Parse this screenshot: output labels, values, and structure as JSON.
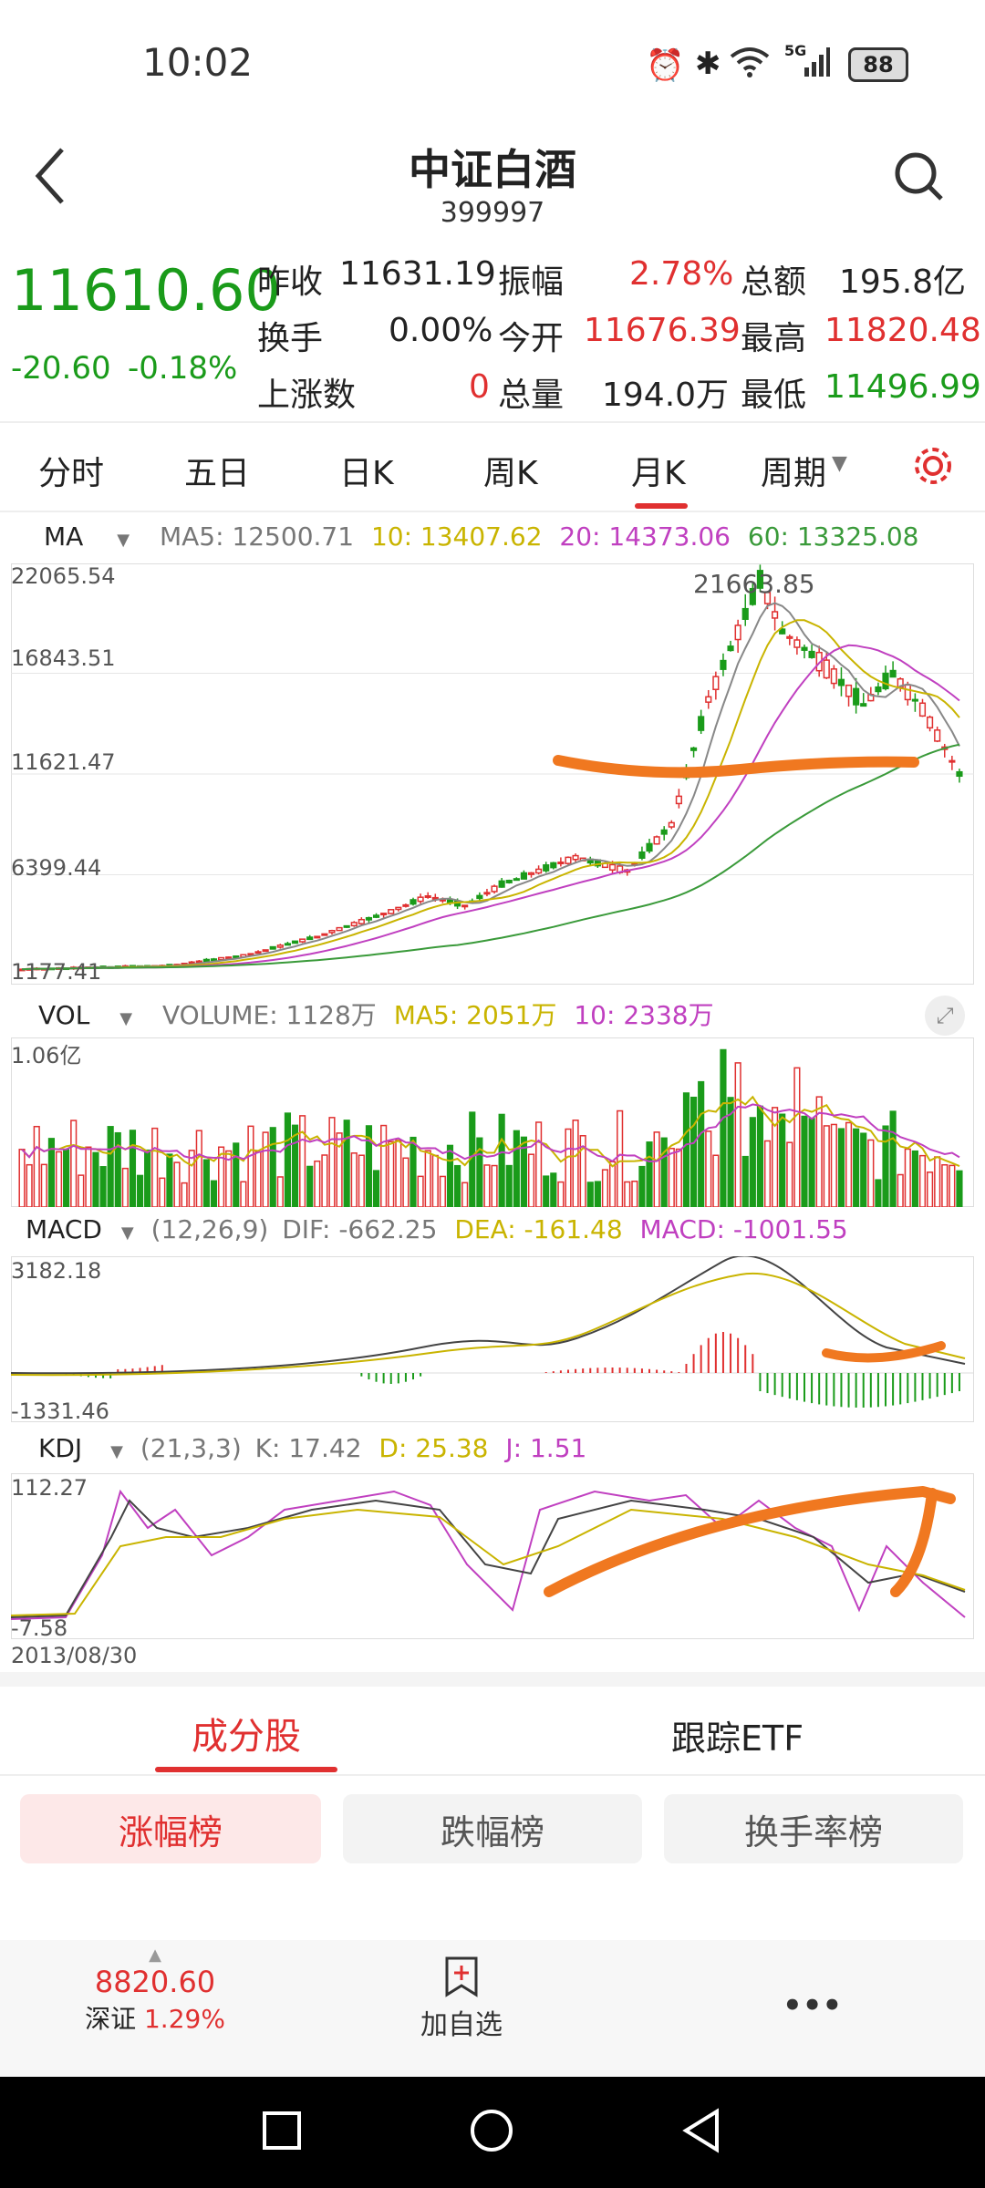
{
  "status_bar": {
    "time": "10:02",
    "battery": "88",
    "network": "5G"
  },
  "header": {
    "title": "中证白酒",
    "code": "399997"
  },
  "quote": {
    "price": "11610.60",
    "change": "-20.60",
    "change_pct": "-0.18%",
    "rows": [
      [
        {
          "label": "昨收",
          "value": "11631.19"
        },
        {
          "label": "振幅",
          "value": "2.78%"
        },
        {
          "label": "总额",
          "value": "195.8亿"
        }
      ],
      [
        {
          "label": "换手",
          "value": "0.00%"
        },
        {
          "label": "今开",
          "value": "11676.39"
        },
        {
          "label": "最高",
          "value": "11820.48"
        }
      ],
      [
        {
          "label": "上涨数",
          "value": "0"
        },
        {
          "label": "总量",
          "value": "194.0万"
        },
        {
          "label": "最低",
          "value": "11496.99"
        }
      ]
    ]
  },
  "period_tabs": [
    "分时",
    "五日",
    "日K",
    "周K",
    "月K",
    "周期"
  ],
  "active_tab": "月K",
  "ma_legend": {
    "name": "MA",
    "ma5": "MA5: 12500.71",
    "ma10": "10: 13407.62",
    "ma20": "20: 14373.06",
    "ma60": "60: 13325.08"
  },
  "price_axis": [
    "22065.54",
    "16843.51",
    "11621.47",
    "6399.44",
    "1177.41"
  ],
  "peak_label": "21663.85",
  "vol_legend": {
    "name": "VOL",
    "volume": "VOLUME: 1128万",
    "ma5": "MA5: 2051万",
    "ma10": "10: 2338万"
  },
  "vol_axis": [
    "1.06亿"
  ],
  "macd_legend": {
    "name": "MACD",
    "params": "(12,26,9)",
    "dif": "DIF: -662.25",
    "dea": "DEA: -161.48",
    "macd": "MACD: -1001.55"
  },
  "macd_axis": [
    "3182.18",
    "-1331.46"
  ],
  "kdj_legend": {
    "name": "KDJ",
    "params": "(21,3,3)",
    "k": "K: 17.42",
    "d": "D: 25.38",
    "j": "J: 1.51"
  },
  "kdj_axis": [
    "112.27",
    "-7.58"
  ],
  "start_date": "2013/08/30",
  "bottom_tabs": [
    "成分股",
    "跟踪ETF"
  ],
  "filters": [
    "涨幅榜",
    "跌幅榜",
    "换手率榜"
  ],
  "footer": {
    "index_value": "8820.60",
    "index_name": "深证",
    "index_pct": "1.29%",
    "add_label": "加自选",
    "more": "•••"
  },
  "colors": {
    "up": "#e03030",
    "down": "#1a9b1a",
    "ma10": "#c9b400",
    "ma20": "#c040c0",
    "ma60": "#3a9a3a",
    "annotation": "#f07820"
  },
  "chart_data": {
    "type": "candlestick",
    "description": "monthly K-line of index 399997",
    "price_range": [
      1177.41,
      22065.54
    ],
    "peak": 21663.85,
    "last_close": 11610.6
  }
}
